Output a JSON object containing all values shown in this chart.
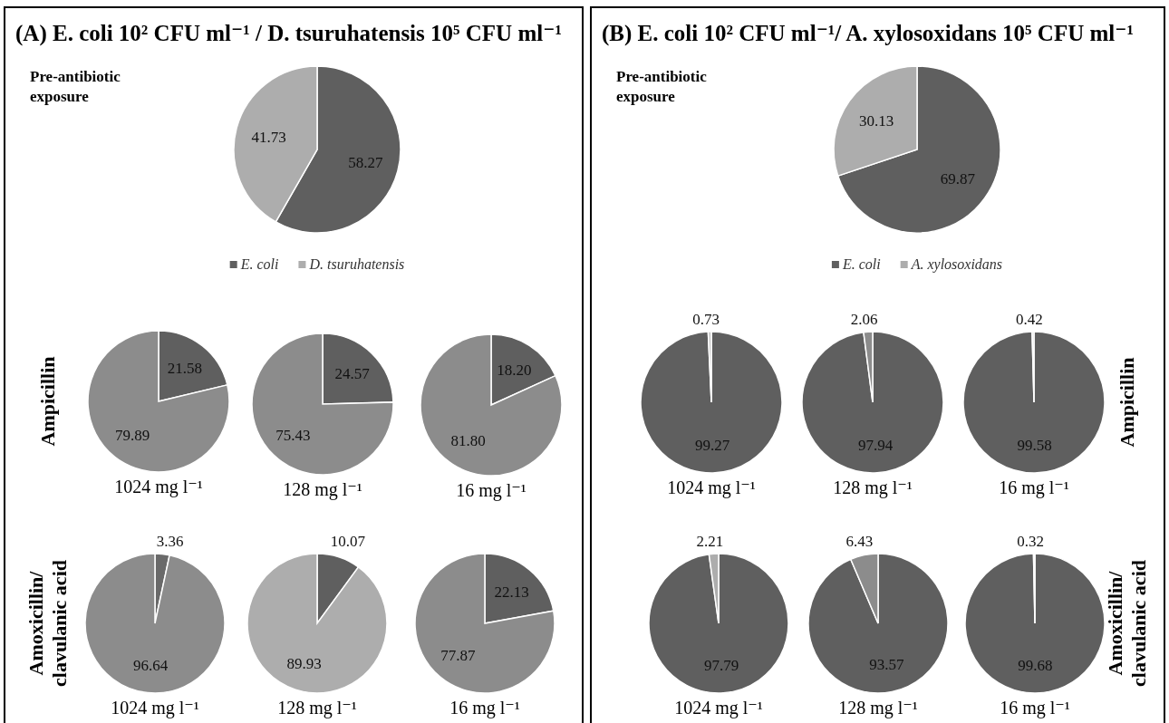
{
  "chart_data": [
    {
      "type": "pie",
      "title": "(A)  E. coli 10² CFU ml⁻¹ / D. tsuruhatensis 10⁵ CFU ml⁻¹",
      "subtitle": "Pre-antibiotic exposure",
      "categories": [
        "E. coli",
        "D. tsuruhatensis"
      ],
      "values": [
        58.27,
        41.73
      ],
      "colors": [
        "#5f5f5f",
        "#adadad"
      ],
      "data_labels": true,
      "legend": "bottom"
    },
    {
      "type": "pie",
      "ylabel": "Ampicillin",
      "xlabel": "1024 mg l⁻¹",
      "categories": [
        null,
        null
      ],
      "values": [
        21.58,
        79.89
      ],
      "colors": [
        "#5f5f5f",
        "#8c8c8c"
      ],
      "data_labels": true
    },
    {
      "type": "pie",
      "xlabel": "128 mg l⁻¹",
      "categories": [
        null,
        null
      ],
      "values": [
        24.57,
        75.43
      ],
      "colors": [
        "#5f5f5f",
        "#8c8c8c"
      ],
      "data_labels": true
    },
    {
      "type": "pie",
      "xlabel": "16 mg l⁻¹",
      "categories": [
        null,
        null
      ],
      "values": [
        18.2,
        81.8
      ],
      "colors": [
        "#5f5f5f",
        "#8c8c8c"
      ],
      "value_labels": [
        "18.20",
        "81.80"
      ]
    },
    {
      "type": "pie",
      "ylabel": "Amoxicillin/\nclavulanic acid",
      "xlabel": "1024 mg l⁻¹",
      "categories": [
        null,
        null
      ],
      "values": [
        3.36,
        96.64
      ],
      "colors": [
        "#6a6a6a",
        "#8c8c8c"
      ],
      "data_labels": true
    },
    {
      "type": "pie",
      "xlabel": "128 mg l⁻¹",
      "categories": [
        null,
        null
      ],
      "values": [
        10.07,
        89.93
      ],
      "colors": [
        "#5f5f5f",
        "#adadad"
      ],
      "data_labels": true
    },
    {
      "type": "pie",
      "xlabel": "16 mg l⁻¹",
      "categories": [
        null,
        null
      ],
      "values": [
        22.13,
        77.87
      ],
      "colors": [
        "#5f5f5f",
        "#8c8c8c"
      ],
      "data_labels": true
    },
    {
      "type": "pie",
      "title": "(B)  E. coli 10² CFU ml⁻¹/ A. xylosoxidans 10⁵ CFU ml⁻¹",
      "subtitle": "Pre-antibiotic exposure",
      "categories": [
        "E. coli",
        "A. xylosoxidans"
      ],
      "values": [
        69.87,
        30.13
      ],
      "colors": [
        "#5f5f5f",
        "#adadad"
      ],
      "data_labels": true,
      "legend": "bottom"
    },
    {
      "type": "pie",
      "xlabel": "1024 mg l⁻¹",
      "categories": [
        null,
        null
      ],
      "values": [
        99.27,
        0.73
      ],
      "colors": [
        "#5f5f5f",
        "#c8c8c8"
      ],
      "data_labels": true
    },
    {
      "type": "pie",
      "xlabel": "128 mg l⁻¹",
      "categories": [
        null,
        null
      ],
      "values": [
        97.94,
        2.06
      ],
      "colors": [
        "#5f5f5f",
        "#8c8c8c"
      ],
      "data_labels": true
    },
    {
      "type": "pie",
      "ylabel": "Ampicillin",
      "xlabel": "16 mg l⁻¹",
      "categories": [
        null,
        null
      ],
      "values": [
        99.58,
        0.42
      ],
      "colors": [
        "#5f5f5f",
        "#c8c8c8"
      ],
      "data_labels": true
    },
    {
      "type": "pie",
      "xlabel": "1024 mg l⁻¹",
      "categories": [
        null,
        null
      ],
      "values": [
        97.79,
        2.21
      ],
      "colors": [
        "#5f5f5f",
        "#adadad"
      ],
      "data_labels": true
    },
    {
      "type": "pie",
      "xlabel": "128 mg l⁻¹",
      "categories": [
        null,
        null
      ],
      "values": [
        93.57,
        6.43
      ],
      "colors": [
        "#5f5f5f",
        "#8c8c8c"
      ],
      "data_labels": true
    },
    {
      "type": "pie",
      "ylabel": "Amoxicillin/\nclavulanic acid",
      "xlabel": "16 mg l⁻¹",
      "categories": [
        null,
        null
      ],
      "values": [
        99.68,
        0.32
      ],
      "colors": [
        "#5f5f5f",
        "#c8c8c8"
      ],
      "data_labels": true
    }
  ]
}
